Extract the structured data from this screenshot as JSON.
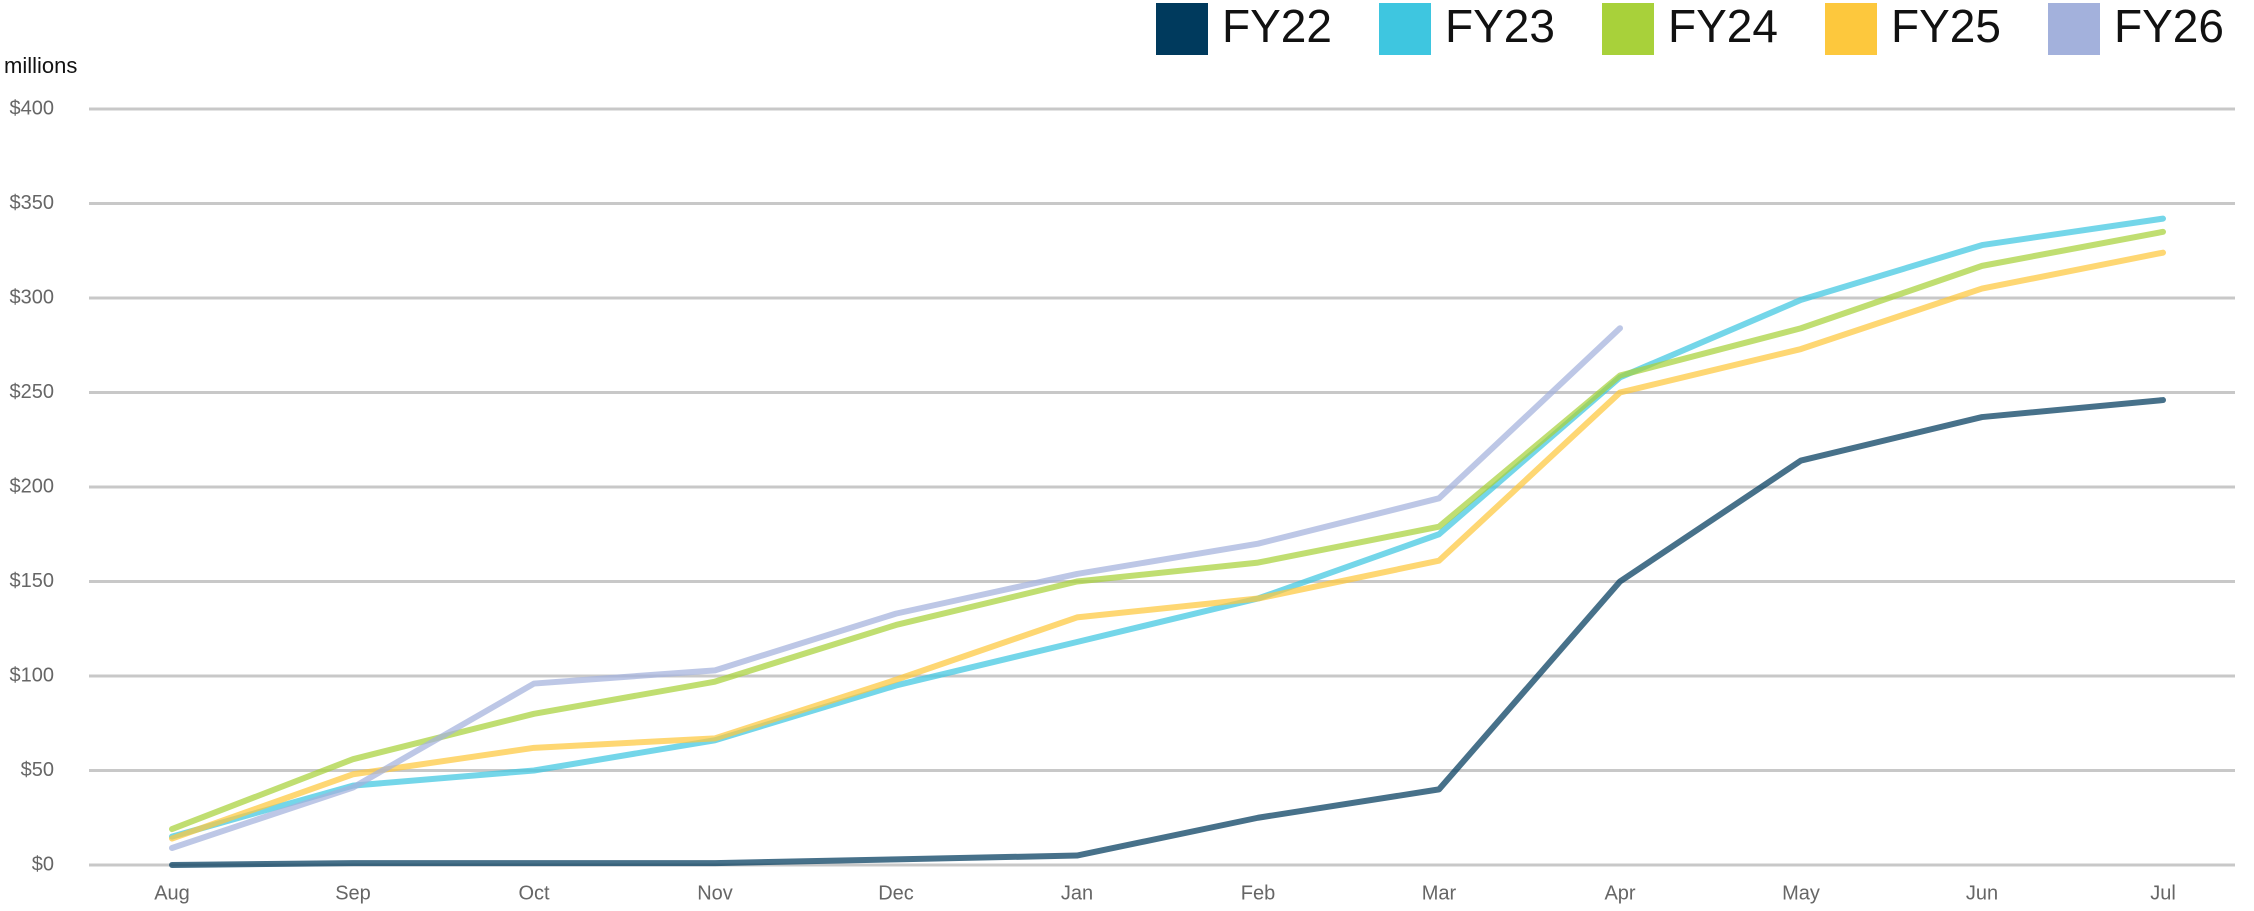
{
  "chart_data": {
    "type": "line",
    "y_label": "millions",
    "categories": [
      "Aug",
      "Sep",
      "Oct",
      "Nov",
      "Dec",
      "Jan",
      "Feb",
      "Mar",
      "Apr",
      "May",
      "Jun",
      "Jul"
    ],
    "series": [
      {
        "name": "FY22",
        "color": "#003a5d",
        "values": [
          0,
          1,
          1,
          1,
          3,
          5,
          25,
          40,
          150,
          214,
          237,
          246
        ]
      },
      {
        "name": "FY23",
        "color": "#3ec6e0",
        "values": [
          15,
          42,
          50,
          66,
          95,
          118,
          141,
          175,
          258,
          299,
          328,
          342
        ]
      },
      {
        "name": "FY24",
        "color": "#a8d13a",
        "values": [
          19,
          56,
          80,
          97,
          127,
          150,
          160,
          179,
          259,
          284,
          317,
          335
        ]
      },
      {
        "name": "FY25",
        "color": "#fdc83d",
        "values": [
          14,
          48,
          62,
          67,
          98,
          131,
          141,
          161,
          250,
          273,
          305,
          324
        ]
      },
      {
        "name": "FY26",
        "color": "#a3b1dc",
        "values": [
          9,
          41,
          96,
          103,
          133,
          154,
          170,
          194,
          284,
          null,
          null,
          null
        ]
      }
    ],
    "ylim": [
      0,
      400
    ],
    "yticks": [
      {
        "value": 0,
        "label": "$0"
      },
      {
        "value": 50,
        "label": "$50"
      },
      {
        "value": 100,
        "label": "$100"
      },
      {
        "value": 150,
        "label": "$150"
      },
      {
        "value": 200,
        "label": "$200"
      },
      {
        "value": 250,
        "label": "$250"
      },
      {
        "value": 300,
        "label": "$300"
      },
      {
        "value": 350,
        "label": "$350"
      },
      {
        "value": 400,
        "label": "$400"
      }
    ],
    "grid": true,
    "legend": "top-right"
  }
}
